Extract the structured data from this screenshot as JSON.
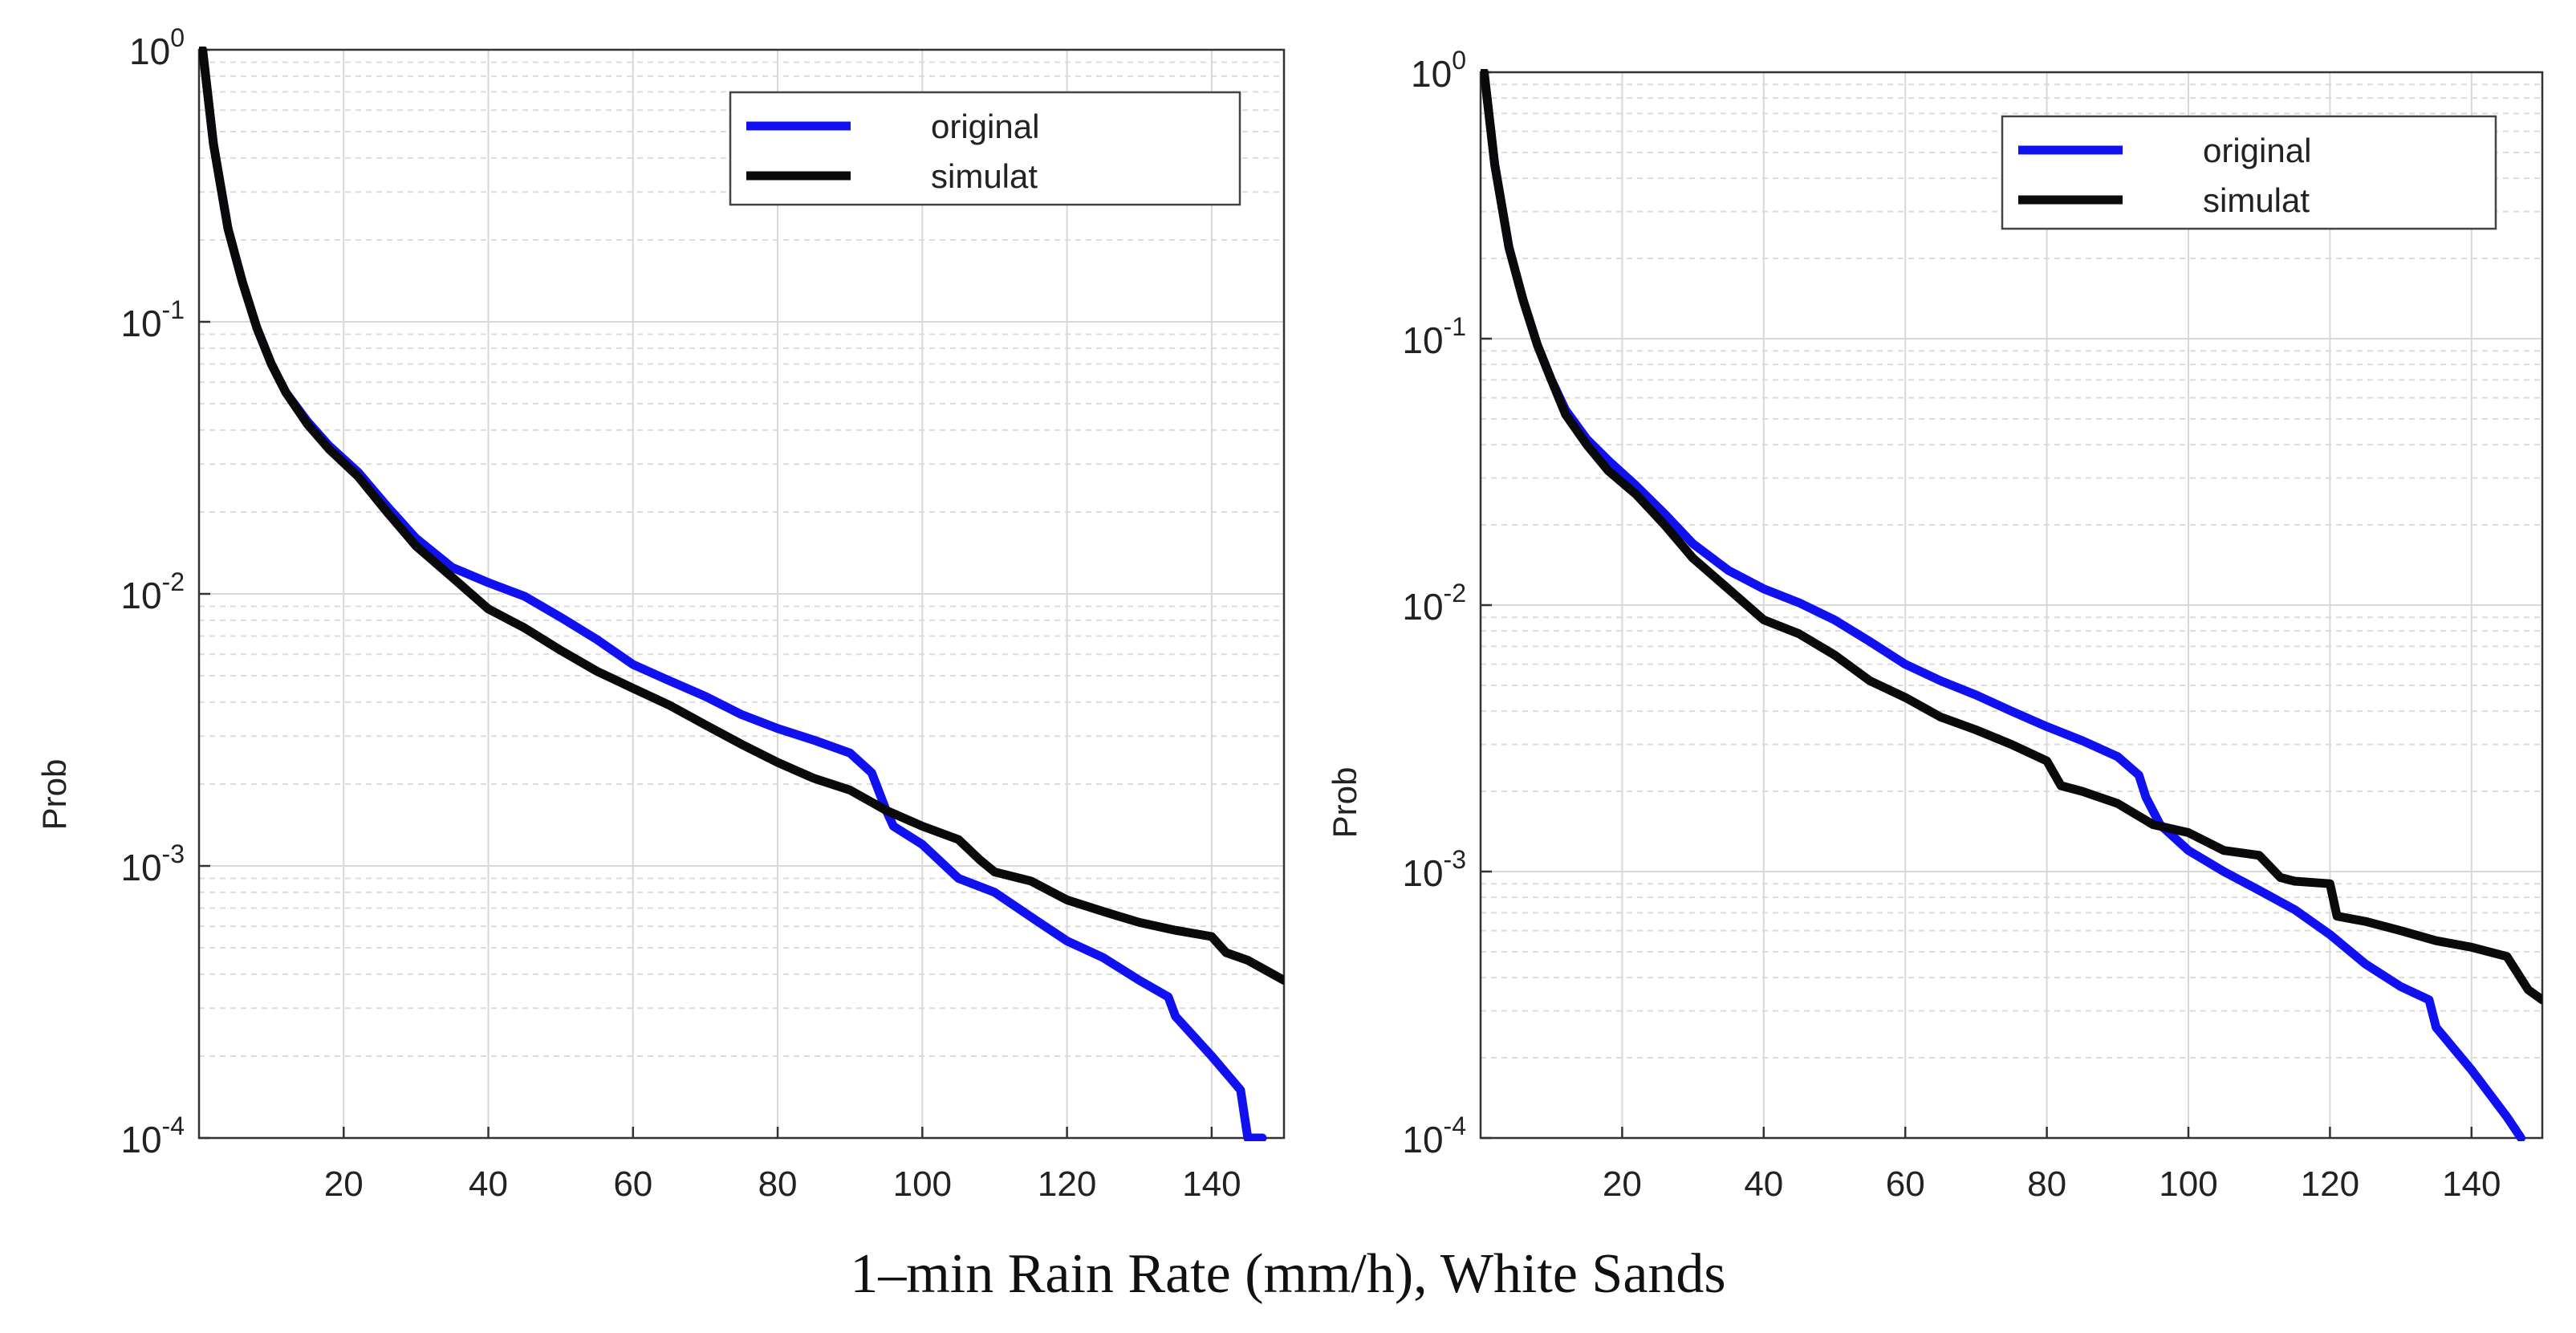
{
  "figure": {
    "caption": "1–min Rain Rate (mm/h), White Sands",
    "colors": {
      "original": "#1010f0",
      "simulat": "#0a0a0a",
      "grid": "#d8d8d8",
      "axes": "#333333"
    }
  },
  "chart_data": [
    {
      "type": "line",
      "title": "",
      "xlabel": "",
      "ylabel": "Prob",
      "xlim": [
        0,
        150
      ],
      "ylim": [
        0.0001,
        1
      ],
      "yscale": "log",
      "grid": true,
      "legend_position": "top-right",
      "xticks": [
        "20",
        "40",
        "60",
        "80",
        "100",
        "120",
        "140"
      ],
      "yticks": [
        {
          "base": "10",
          "exp": "0"
        },
        {
          "base": "10",
          "exp": "-1"
        },
        {
          "base": "10",
          "exp": "-2"
        },
        {
          "base": "10",
          "exp": "-3"
        },
        {
          "base": "10",
          "exp": "-4"
        }
      ],
      "series": [
        {
          "name": "original",
          "color": "#1010f0",
          "x": [
            0.5,
            2,
            4,
            6,
            8,
            10,
            12,
            15,
            18,
            22,
            26,
            30,
            35,
            40,
            45,
            50,
            55,
            60,
            65,
            70,
            75,
            80,
            85,
            90,
            93,
            95,
            96,
            100,
            105,
            110,
            115,
            120,
            125,
            130,
            134,
            135,
            140,
            144,
            145,
            147
          ],
          "values": [
            1.0,
            0.45,
            0.22,
            0.14,
            0.095,
            0.07,
            0.055,
            0.043,
            0.035,
            0.028,
            0.021,
            0.016,
            0.0125,
            0.011,
            0.0098,
            0.0082,
            0.0068,
            0.0055,
            0.0048,
            0.0042,
            0.0036,
            0.0032,
            0.0029,
            0.0026,
            0.0022,
            0.0016,
            0.0014,
            0.0012,
            0.0009,
            0.0008,
            0.00065,
            0.00053,
            0.00046,
            0.00038,
            0.00033,
            0.00028,
            0.0002,
            0.00015,
            0.0001,
            0.0001
          ]
        },
        {
          "name": "simulat",
          "color": "#0a0a0a",
          "x": [
            0.5,
            2,
            4,
            6,
            8,
            10,
            12,
            15,
            18,
            22,
            26,
            30,
            35,
            40,
            45,
            50,
            55,
            60,
            65,
            70,
            75,
            80,
            85,
            90,
            95,
            100,
            105,
            108,
            110,
            115,
            120,
            125,
            130,
            135,
            140,
            142,
            145,
            150
          ],
          "values": [
            1.0,
            0.45,
            0.22,
            0.14,
            0.095,
            0.07,
            0.055,
            0.042,
            0.034,
            0.027,
            0.02,
            0.015,
            0.0115,
            0.0088,
            0.0075,
            0.0062,
            0.0052,
            0.0045,
            0.0039,
            0.0033,
            0.0028,
            0.0024,
            0.0021,
            0.0019,
            0.0016,
            0.0014,
            0.00125,
            0.00105,
            0.00095,
            0.00088,
            0.00075,
            0.00068,
            0.00062,
            0.00058,
            0.00055,
            0.00048,
            0.00045,
            0.00038
          ]
        }
      ]
    },
    {
      "type": "line",
      "title": "",
      "xlabel": "",
      "ylabel": "Prob",
      "xlim": [
        0,
        150
      ],
      "ylim": [
        0.0001,
        1
      ],
      "yscale": "log",
      "grid": true,
      "legend_position": "top-right",
      "xticks": [
        "20",
        "40",
        "60",
        "80",
        "100",
        "120",
        "140"
      ],
      "yticks": [
        {
          "base": "10",
          "exp": "0"
        },
        {
          "base": "10",
          "exp": "-1"
        },
        {
          "base": "10",
          "exp": "-2"
        },
        {
          "base": "10",
          "exp": "-3"
        },
        {
          "base": "10",
          "exp": "-4"
        }
      ],
      "series": [
        {
          "name": "original",
          "color": "#1010f0",
          "x": [
            0.5,
            2,
            4,
            6,
            8,
            10,
            12,
            15,
            18,
            22,
            26,
            30,
            35,
            40,
            45,
            50,
            55,
            60,
            65,
            70,
            75,
            80,
            85,
            90,
            93,
            94,
            96,
            100,
            105,
            110,
            115,
            120,
            125,
            130,
            134,
            135,
            140,
            145,
            147
          ],
          "values": [
            1.0,
            0.45,
            0.22,
            0.14,
            0.095,
            0.07,
            0.054,
            0.042,
            0.035,
            0.028,
            0.022,
            0.017,
            0.0135,
            0.0115,
            0.0102,
            0.0088,
            0.0073,
            0.006,
            0.0052,
            0.0046,
            0.004,
            0.0035,
            0.0031,
            0.0027,
            0.0023,
            0.0019,
            0.0015,
            0.0012,
            0.001,
            0.00085,
            0.00072,
            0.00058,
            0.00045,
            0.00037,
            0.00033,
            0.00026,
            0.00018,
            0.00012,
            0.0001
          ]
        },
        {
          "name": "simulat",
          "color": "#0a0a0a",
          "x": [
            0.5,
            2,
            4,
            6,
            8,
            10,
            12,
            15,
            18,
            22,
            26,
            30,
            35,
            40,
            45,
            50,
            55,
            60,
            65,
            70,
            75,
            80,
            82,
            85,
            90,
            95,
            100,
            105,
            110,
            113,
            115,
            120,
            121,
            125,
            130,
            135,
            140,
            145,
            148,
            150
          ],
          "values": [
            1.0,
            0.45,
            0.22,
            0.14,
            0.095,
            0.07,
            0.052,
            0.04,
            0.032,
            0.026,
            0.02,
            0.015,
            0.0115,
            0.0088,
            0.0078,
            0.0065,
            0.0052,
            0.0045,
            0.0038,
            0.0034,
            0.003,
            0.0026,
            0.0021,
            0.002,
            0.0018,
            0.0015,
            0.0014,
            0.0012,
            0.00115,
            0.00095,
            0.00092,
            0.0009,
            0.00068,
            0.00065,
            0.0006,
            0.00055,
            0.00052,
            0.00048,
            0.00036,
            0.00033
          ]
        }
      ]
    }
  ]
}
